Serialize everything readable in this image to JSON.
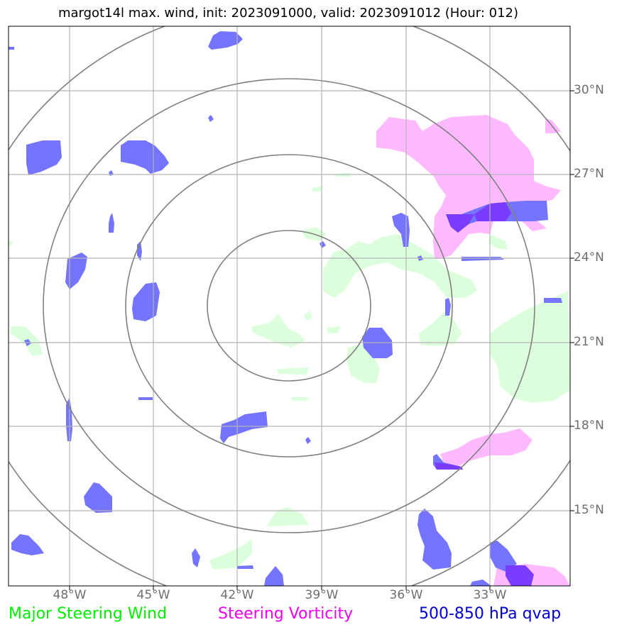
{
  "title": "margot14l max. wind, init: 2023091000, valid: 2023091012 (Hour: 012)",
  "map": {
    "lon_range": [
      -50.2,
      -30.0
    ],
    "lat_range": [
      12.5,
      32.5
    ],
    "lon_ticks": [
      "48°W",
      "45°W",
      "42°W",
      "39°W",
      "36°W",
      "33°W"
    ],
    "lat_ticks": [
      "30°N",
      "27°N",
      "24°N",
      "21°N",
      "18°N",
      "15°N"
    ],
    "gridlines": true,
    "range_rings": 4,
    "colors": {
      "major_steering_wind": "#00ee00",
      "steering_vorticity": "#ee00ee",
      "qvap": "#0000cc",
      "wind_fill": "#dcffdc",
      "vorticity_fill": "#ffbaff",
      "qvap_fill": "#7474ff",
      "overlap_fill": "#7a3cff"
    }
  },
  "legend": {
    "wind": "Major Steering Wind",
    "vorticity": "Steering Vorticity",
    "qvap": "500-850 hPa qvap"
  }
}
